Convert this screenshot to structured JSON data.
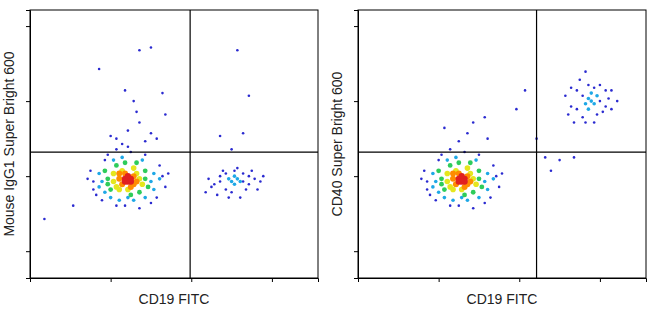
{
  "chart_data": [
    {
      "type": "scatter",
      "x_label": "CD19 FITC",
      "y_label": "Mouse IgG1 Super Bright 600",
      "xlim": [
        0,
        100
      ],
      "ylim": [
        0,
        100
      ],
      "xticks": [
        28,
        56,
        84
      ],
      "yticks": [
        10,
        38,
        66,
        94
      ],
      "tick_labels": false,
      "quadrant": {
        "x": 55.6,
        "y": 47
      },
      "series": [
        {
          "color": "#2a2ad0",
          "x": [
            22,
            46,
            23,
            45,
            27,
            33,
            42,
            21,
            35,
            47,
            25,
            40,
            48,
            22,
            30,
            38,
            44,
            26,
            20,
            30,
            64,
            66,
            68,
            74,
            76,
            78,
            65,
            70,
            75,
            67,
            72,
            80,
            62,
            77,
            69,
            73,
            79,
            63,
            68,
            74,
            66,
            71,
            76,
            81,
            61,
            37,
            38,
            34,
            42,
            40,
            44,
            33,
            32,
            28,
            47,
            42,
            38,
            24,
            46,
            36,
            34,
            30,
            72,
            76,
            74,
            66,
            70,
            15,
            5
          ],
          "y": [
            36,
            38,
            31,
            42,
            46,
            27,
            28,
            40,
            47,
            34,
            29,
            46,
            39,
            33,
            27,
            26,
            30,
            44,
            37,
            48,
            35,
            38,
            33,
            39,
            35,
            37,
            31,
            32,
            33,
            40,
            41,
            36,
            37,
            40,
            30,
            30,
            33,
            34,
            39,
            36,
            36,
            40,
            38,
            38,
            32,
            62,
            58,
            55,
            54,
            51,
            52,
            70,
            50,
            53,
            61,
            86,
            85,
            78,
            69,
            66,
            49,
            52,
            85,
            68,
            54,
            53,
            48,
            27,
            22
          ]
        },
        {
          "color": "#1ea8e6",
          "x": [
            25,
            42,
            26,
            43,
            29,
            34,
            40,
            24,
            32,
            43,
            28,
            39,
            45,
            24,
            36,
            31,
            70,
            72,
            71,
            69,
            73,
            71
          ],
          "y": [
            36,
            36,
            32,
            39,
            44,
            30,
            30,
            39,
            45,
            33,
            30,
            44,
            37,
            34,
            29,
            29,
            36,
            37,
            35,
            37,
            36,
            38
          ]
        },
        {
          "color": "#2ecc5a",
          "x": [
            27,
            40,
            28,
            40,
            30,
            35,
            38,
            26,
            33,
            41,
            27,
            37
          ],
          "y": [
            37,
            37,
            33,
            40,
            42,
            31,
            32,
            40,
            43,
            34,
            35,
            43
          ]
        },
        {
          "color": "#e6e61e",
          "x": [
            29,
            38,
            30,
            37,
            32,
            34,
            39,
            29,
            36,
            31
          ],
          "y": [
            36,
            37,
            34,
            39,
            40,
            33,
            35,
            39,
            41,
            33
          ]
        },
        {
          "color": "#ff8c00",
          "x": [
            31,
            36,
            32,
            37,
            33,
            35,
            31,
            36
          ],
          "y": [
            37,
            38,
            35,
            36,
            39,
            34,
            39,
            35
          ]
        },
        {
          "color": "#e02020",
          "x": [
            33,
            34,
            35,
            34,
            33,
            35
          ],
          "y": [
            37,
            36,
            37,
            38,
            36,
            36
          ]
        }
      ]
    },
    {
      "type": "scatter",
      "x_label": "CD19 FITC",
      "y_label": "CD40 Super Bright 600",
      "xlim": [
        0,
        100
      ],
      "ylim": [
        0,
        100
      ],
      "xticks": [
        28,
        56,
        84
      ],
      "yticks": [
        10,
        38,
        66,
        94
      ],
      "tick_labels": false,
      "quadrant": {
        "x": 62,
        "y": 47
      },
      "series": [
        {
          "color": "#2a2ad0",
          "x": [
            24,
            48,
            25,
            47,
            29,
            35,
            44,
            23,
            37,
            49,
            27,
            42,
            50,
            24,
            32,
            40,
            46,
            28,
            22,
            32,
            74,
            76,
            78,
            85,
            87,
            84,
            77,
            72,
            88,
            82,
            75,
            86,
            79,
            73,
            90,
            83,
            78,
            84,
            76,
            82,
            80,
            86,
            74,
            88,
            79,
            38,
            35,
            40,
            45,
            65,
            62,
            70,
            75,
            67,
            55,
            58,
            30,
            44
          ],
          "y": [
            36,
            38,
            31,
            42,
            46,
            27,
            28,
            40,
            47,
            34,
            29,
            46,
            39,
            33,
            27,
            26,
            30,
            44,
            37,
            48,
            64,
            70,
            60,
            62,
            67,
            72,
            74,
            68,
            63,
            58,
            58,
            70,
            77,
            61,
            66,
            61,
            68,
            66,
            63,
            71,
            72,
            64,
            71,
            70,
            58,
            54,
            51,
            58,
            52,
            45,
            52,
            44,
            45,
            40,
            63,
            70,
            56,
            60
          ]
        },
        {
          "color": "#1ea8e6",
          "x": [
            27,
            44,
            28,
            45,
            31,
            36,
            42,
            26,
            34,
            45,
            30,
            41,
            47,
            26,
            38,
            33,
            81,
            80,
            82,
            79,
            83,
            81,
            80
          ],
          "y": [
            36,
            36,
            32,
            39,
            44,
            30,
            30,
            39,
            45,
            33,
            30,
            44,
            37,
            34,
            29,
            29,
            66,
            67,
            65,
            65,
            68,
            69,
            63
          ]
        },
        {
          "color": "#2ecc5a",
          "x": [
            29,
            42,
            30,
            42,
            32,
            37,
            40,
            28,
            35,
            43,
            29,
            39
          ],
          "y": [
            37,
            37,
            33,
            40,
            42,
            31,
            32,
            40,
            43,
            34,
            35,
            43
          ]
        },
        {
          "color": "#e6e61e",
          "x": [
            31,
            40,
            32,
            39,
            34,
            36,
            41,
            31,
            38,
            33
          ],
          "y": [
            36,
            37,
            34,
            39,
            40,
            33,
            35,
            39,
            41,
            33
          ]
        },
        {
          "color": "#ff8c00",
          "x": [
            33,
            38,
            34,
            39,
            35,
            37,
            33,
            38
          ],
          "y": [
            37,
            38,
            35,
            36,
            39,
            34,
            39,
            35
          ]
        },
        {
          "color": "#e02020",
          "x": [
            35,
            36,
            37,
            36,
            35,
            37
          ],
          "y": [
            37,
            36,
            37,
            38,
            36,
            36
          ]
        }
      ]
    }
  ]
}
